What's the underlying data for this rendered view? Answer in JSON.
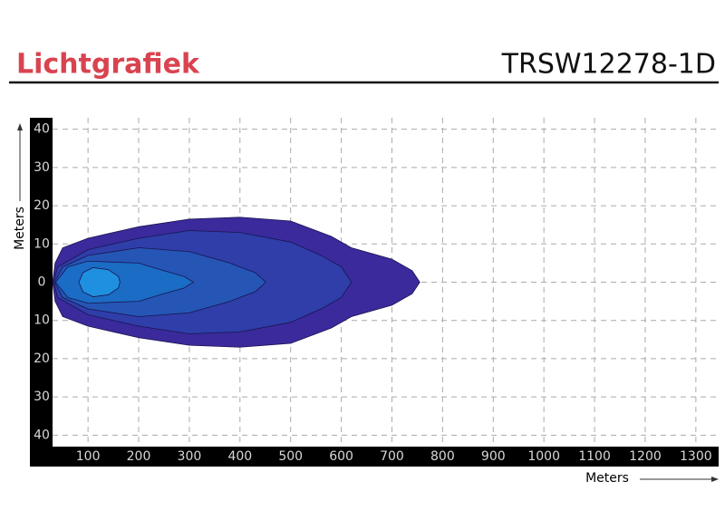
{
  "header": {
    "title": "Lichtgrafiek",
    "code": "TRSW12278-1D"
  },
  "chart_data": {
    "type": "contour",
    "x_label": "Meters",
    "y_label": "Meters",
    "xlim": [
      30,
      1345
    ],
    "ylim": [
      -43,
      43
    ],
    "xticks": [
      100,
      200,
      300,
      400,
      500,
      600,
      700,
      800,
      900,
      1000,
      1100,
      1200,
      1300
    ],
    "yticks": [
      {
        "value": -40,
        "label": "40"
      },
      {
        "value": -30,
        "label": "30"
      },
      {
        "value": -20,
        "label": "20"
      },
      {
        "value": -10,
        "label": "10"
      },
      0,
      10,
      20,
      30,
      40
    ],
    "grid": true,
    "series": [
      {
        "color": "#3a2a9c",
        "x": [
          30,
          35,
          50,
          100,
          200,
          300,
          400,
          500,
          580,
          620,
          700,
          740,
          755,
          740,
          700,
          620,
          580,
          500,
          400,
          300,
          200,
          100,
          50,
          35
        ],
        "y": [
          0,
          5,
          9,
          11.5,
          14.5,
          16.5,
          17,
          16,
          12,
          9,
          6,
          3,
          0,
          -3,
          -6,
          -9,
          -12,
          -16,
          -17,
          -16.5,
          -14.5,
          -11.5,
          -9,
          -5
        ]
      },
      {
        "color": "#2f3ea8",
        "x": [
          32,
          40,
          100,
          200,
          300,
          400,
          500,
          560,
          600,
          620,
          600,
          560,
          500,
          400,
          300,
          200,
          100,
          40
        ],
        "y": [
          0,
          4,
          8.5,
          11.5,
          13.5,
          13,
          10.5,
          7,
          4,
          0,
          -4,
          -7,
          -10.5,
          -13,
          -13.5,
          -11.5,
          -8.5,
          -4
        ]
      },
      {
        "color": "#2556b5",
        "x": [
          34,
          50,
          100,
          200,
          300,
          380,
          430,
          451,
          430,
          380,
          300,
          200,
          100,
          50
        ],
        "y": [
          0,
          4,
          7,
          9,
          8,
          5,
          2.5,
          0,
          -2.5,
          -5,
          -8,
          -9,
          -7,
          -4
        ]
      },
      {
        "color": "#1a6cc4",
        "x": [
          36,
          60,
          100,
          200,
          250,
          290,
          308,
          290,
          250,
          200,
          100,
          60
        ],
        "y": [
          0,
          4,
          5.5,
          5,
          3,
          1.5,
          0,
          -1.5,
          -3,
          -5,
          -5.5,
          -4
        ]
      },
      {
        "color": "#1f90e0",
        "x": [
          82,
          90,
          110,
          140,
          160,
          163,
          160,
          140,
          110,
          90
        ],
        "y": [
          0,
          2.5,
          3.8,
          3.3,
          1.5,
          0,
          -1.5,
          -3.3,
          -3.8,
          -2.5
        ]
      }
    ]
  }
}
